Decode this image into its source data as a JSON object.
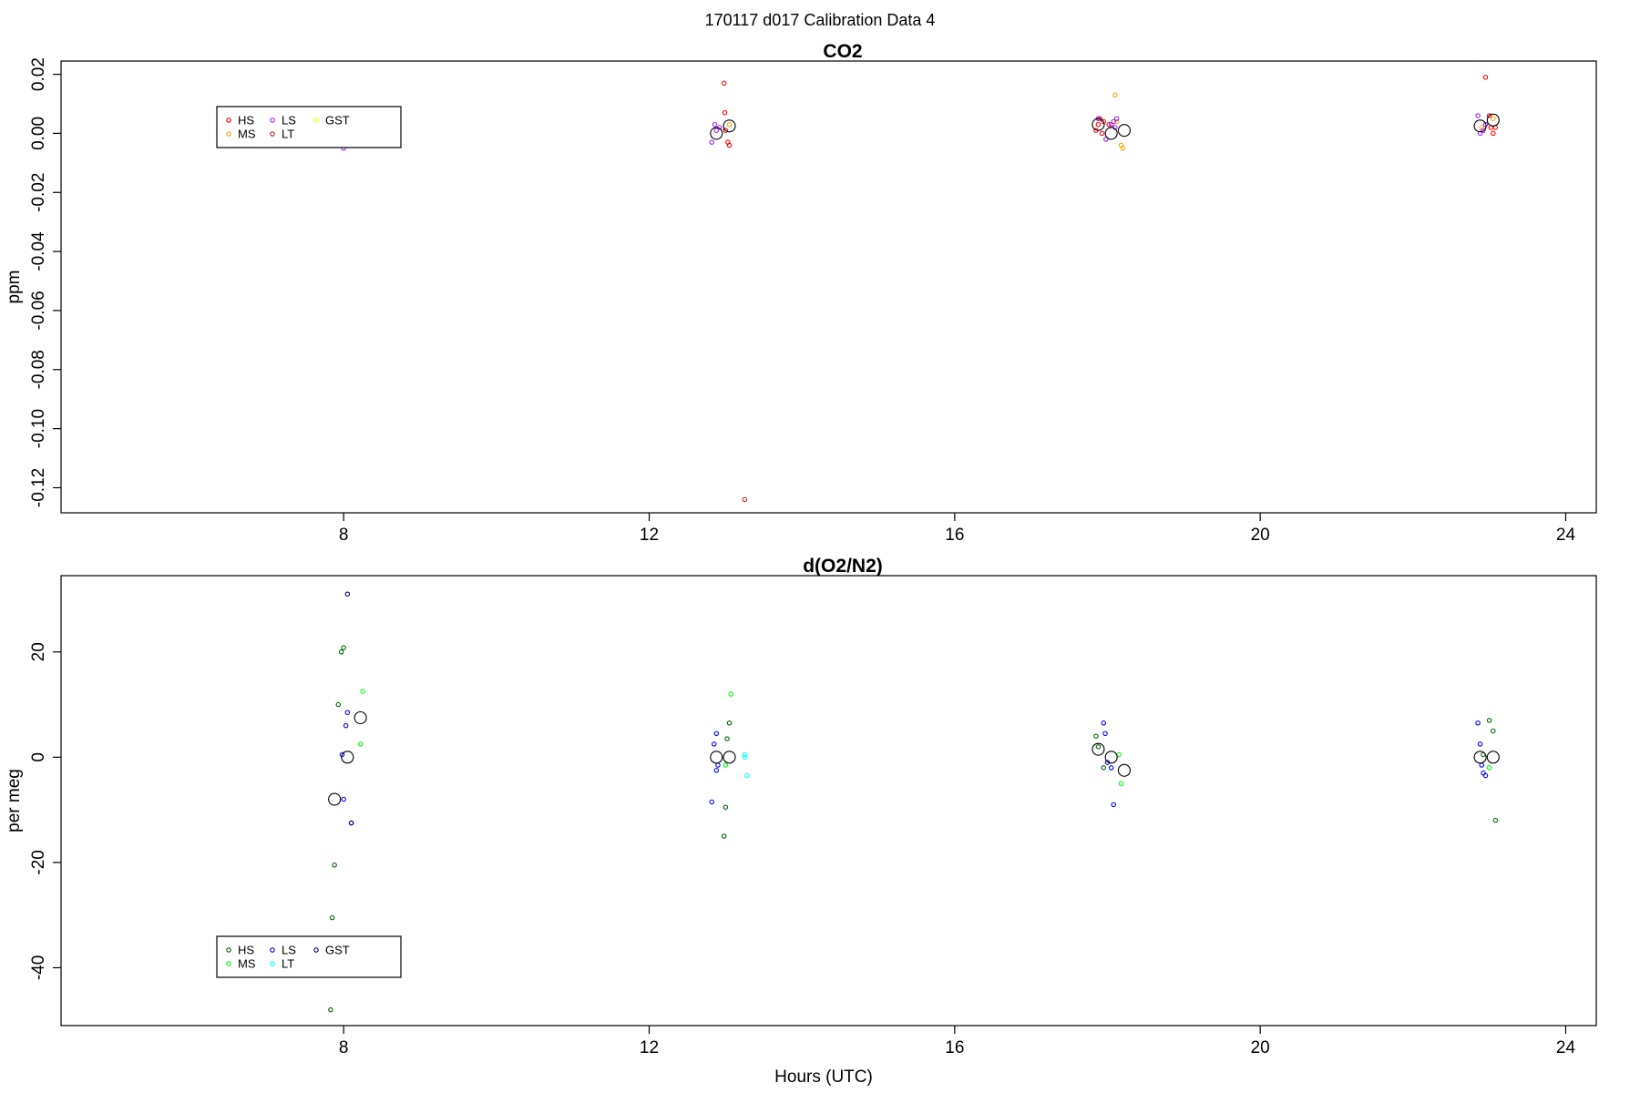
{
  "figure": {
    "title": "170117   d017   Calibration Data 4",
    "xlabel": "Hours (UTC)"
  },
  "chart_data": [
    {
      "type": "scatter",
      "title": "CO2",
      "xlabel": "",
      "ylabel": "ppm",
      "xlim": [
        4.3,
        24.4
      ],
      "ylim": [
        -0.1285,
        0.0245
      ],
      "xticks": [
        8,
        12,
        16,
        20,
        24
      ],
      "yticks": [
        -0.12,
        -0.1,
        -0.08,
        -0.06,
        -0.04,
        -0.02,
        0.0,
        0.02
      ],
      "ytick_labels": [
        "-0.12",
        "-0.10",
        "-0.08",
        "-0.06",
        "-0.04",
        "-0.02",
        "0.00",
        "0.02"
      ],
      "grid": false,
      "legend": {
        "placement": "top-left",
        "items": [
          {
            "label": "HS",
            "color": "#ff0000"
          },
          {
            "label": "MS",
            "color": "#ffa500"
          },
          {
            "label": "LS",
            "color": "#a020f0"
          },
          {
            "label": "LT",
            "color": "#b22222"
          },
          {
            "label": "GST",
            "color": "#ffff00"
          }
        ]
      },
      "series": [
        {
          "name": "HS",
          "color": "#ff0000",
          "x": [
            12.98,
            12.99,
            13.0,
            13.03,
            13.05,
            17.85,
            17.88,
            17.9,
            17.93,
            17.95,
            18.02,
            22.95,
            23.0,
            23.02,
            23.05,
            23.08
          ],
          "y": [
            0.017,
            0.007,
            0.001,
            -0.003,
            -0.004,
            0.001,
            0.003,
            0.005,
            0.0,
            0.004,
            0.003,
            0.019,
            0.006,
            0.002,
            0.0,
            0.002
          ]
        },
        {
          "name": "MS",
          "color": "#ffa500",
          "x": [
            13.05,
            18.1,
            18.12,
            18.18,
            18.2,
            22.9,
            23.05
          ],
          "y": [
            0.003,
            0.013,
            0.004,
            -0.004,
            -0.005,
            0.002,
            0.005
          ]
        },
        {
          "name": "LS",
          "color": "#a020f0",
          "x": [
            8.0,
            12.82,
            12.86,
            12.88,
            12.92,
            17.88,
            18.05,
            18.08,
            18.1,
            18.12,
            17.98,
            22.85,
            22.88,
            22.92,
            22.95
          ],
          "y": [
            -0.005,
            -0.003,
            0.003,
            0.001,
            0.002,
            0.005,
            0.003,
            0.004,
            0.002,
            0.005,
            -0.002,
            0.006,
            0.0,
            0.001,
            0.003
          ]
        },
        {
          "name": "LT",
          "color": "#b22222",
          "x": [
            13.25
          ],
          "y": [
            -0.124
          ]
        },
        {
          "name": "GST",
          "color": "#ffff00",
          "x": [],
          "y": []
        }
      ],
      "means": {
        "color": "#000000",
        "x": [
          12.88,
          13.05,
          17.88,
          18.05,
          18.22,
          22.88,
          23.05
        ],
        "y": [
          0.0,
          0.0025,
          0.003,
          0.0,
          0.001,
          0.0025,
          0.0045
        ]
      }
    },
    {
      "type": "scatter",
      "title": "d(O2/N2)",
      "xlabel": "Hours (UTC)",
      "ylabel": "per meg",
      "xlim": [
        4.3,
        24.4
      ],
      "ylim": [
        -51,
        34.5
      ],
      "xticks": [
        8,
        12,
        16,
        20,
        24
      ],
      "yticks": [
        -40,
        -20,
        0,
        20
      ],
      "ytick_labels": [
        "-40",
        "-20",
        "0",
        "20"
      ],
      "grid": false,
      "legend": {
        "placement": "bottom-left",
        "items": [
          {
            "label": "HS",
            "color": "#006400"
          },
          {
            "label": "MS",
            "color": "#00ff00"
          },
          {
            "label": "LS",
            "color": "#0000ff"
          },
          {
            "label": "LT",
            "color": "#00ffff"
          },
          {
            "label": "GST",
            "color": "#000080"
          }
        ]
      },
      "series": [
        {
          "name": "HS",
          "color": "#006400",
          "x": [
            7.88,
            7.93,
            7.97,
            8.0,
            7.85,
            7.83,
            12.98,
            13.0,
            13.02,
            13.05,
            17.85,
            17.88,
            17.95,
            22.92,
            23.0,
            23.05,
            23.08
          ],
          "y": [
            -20.5,
            10.0,
            20.0,
            20.8,
            -30.5,
            -48.0,
            -15.0,
            -9.5,
            3.5,
            6.5,
            4.0,
            2.0,
            -2.0,
            0.5,
            7.0,
            5.0,
            -12.0
          ]
        },
        {
          "name": "MS",
          "color": "#00ff00",
          "x": [
            8.22,
            8.25,
            13.07,
            13.0,
            18.15,
            18.18,
            23.0
          ],
          "y": [
            2.5,
            12.5,
            12.0,
            -1.5,
            0.5,
            -5.0,
            -2.0
          ]
        },
        {
          "name": "LS",
          "color": "#0000ff",
          "x": [
            7.98,
            8.0,
            8.03,
            8.05,
            8.1,
            12.82,
            12.85,
            12.88,
            12.9,
            12.88,
            17.95,
            17.97,
            18.0,
            18.05,
            18.08,
            22.85,
            22.88,
            22.9,
            22.92,
            22.95
          ],
          "y": [
            0.5,
            -8.0,
            6.0,
            8.5,
            -12.5,
            -8.5,
            2.5,
            4.5,
            -1.5,
            -2.5,
            6.5,
            4.5,
            -1.0,
            -2.0,
            -9.0,
            6.5,
            2.5,
            -1.5,
            -3.0,
            -3.5
          ]
        },
        {
          "name": "LT",
          "color": "#00ffff",
          "x": [
            13.25,
            13.28,
            13.25
          ],
          "y": [
            0.5,
            -3.5,
            0.0
          ]
        },
        {
          "name": "GST",
          "color": "#000080",
          "x": [
            8.05,
            8.1
          ],
          "y": [
            31.0,
            -12.5
          ]
        }
      ],
      "means": {
        "color": "#000000",
        "x": [
          7.88,
          8.05,
          8.22,
          12.88,
          13.05,
          17.88,
          18.05,
          18.22,
          22.88,
          23.05
        ],
        "y": [
          -8.0,
          0.0,
          7.5,
          0.0,
          0.0,
          1.5,
          0.0,
          -2.5,
          0.0,
          0.0
        ]
      }
    }
  ]
}
